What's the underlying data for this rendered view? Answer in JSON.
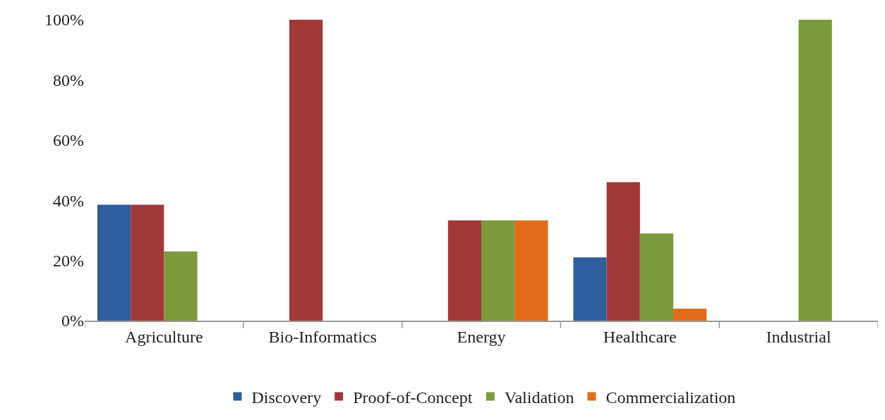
{
  "chart_data": {
    "type": "bar",
    "categories": [
      "Agriculture",
      "Bio-Informatics",
      "Energy",
      "Healthcare",
      "Industrial"
    ],
    "series": [
      {
        "name": "Discovery",
        "color": "#2e5e9c",
        "values": [
          38.5,
          0,
          0,
          21,
          0
        ]
      },
      {
        "name": "Proof-of-Concept",
        "color": "#a0383a",
        "values": [
          38.5,
          100,
          33.3,
          46,
          0
        ]
      },
      {
        "name": "Validation",
        "color": "#7b9a3d",
        "values": [
          23,
          0,
          33.3,
          29,
          100
        ]
      },
      {
        "name": "Commercialization",
        "color": "#e36c1c",
        "values": [
          0,
          0,
          33.3,
          4,
          0
        ]
      }
    ],
    "ylim": [
      0,
      100
    ],
    "yticks": [
      {
        "value": 0,
        "label": "0%"
      },
      {
        "value": 20,
        "label": "20%"
      },
      {
        "value": 40,
        "label": "40%"
      },
      {
        "value": 60,
        "label": "60%"
      },
      {
        "value": 80,
        "label": "80%"
      },
      {
        "value": 100,
        "label": "100%"
      }
    ],
    "grid": false,
    "legend": "bottom"
  }
}
